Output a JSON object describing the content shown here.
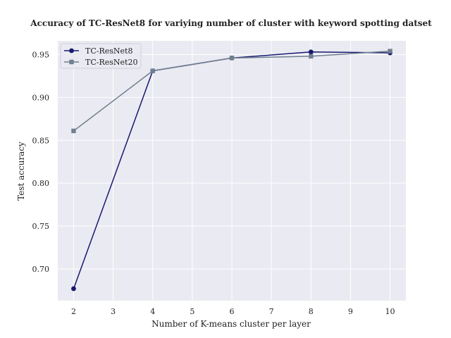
{
  "chart_data": {
    "type": "line",
    "title": "Accuracy of TC-ResNet8 for variying number of cluster with keyword spotting datset",
    "xlabel": "Number of K-means cluster per layer",
    "ylabel": "Test accuracy",
    "x": [
      2,
      4,
      6,
      8,
      10
    ],
    "xticks": [
      "2",
      "3",
      "4",
      "5",
      "6",
      "7",
      "8",
      "9",
      "10"
    ],
    "yticks": [
      "0.70",
      "0.75",
      "0.80",
      "0.85",
      "0.90",
      "0.95"
    ],
    "xlim": [
      1.6,
      10.4
    ],
    "ylim": [
      0.663,
      0.966
    ],
    "grid": true,
    "legend_position": "top-left",
    "series": [
      {
        "name": "TC-ResNet8",
        "values": [
          0.677,
          0.931,
          0.946,
          0.953,
          0.952
        ],
        "color": "#191970",
        "marker": "circle"
      },
      {
        "name": "TC-ResNet20",
        "values": [
          0.861,
          0.931,
          0.946,
          0.948,
          0.954
        ],
        "color": "#708090",
        "marker": "square"
      }
    ],
    "colors": {
      "plot_background": "#EAEAF2",
      "grid": "#FFFFFF"
    }
  }
}
